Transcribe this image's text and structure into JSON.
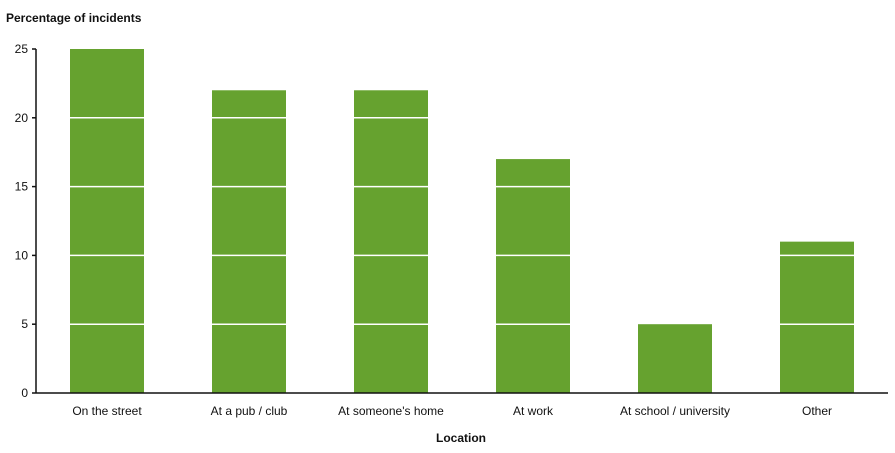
{
  "chart_data": {
    "type": "bar",
    "title": "",
    "ylabel": "Percentage of incidents",
    "xlabel": "Location",
    "categories": [
      "On the street",
      "At a pub / club",
      "At someone's home",
      "At work",
      "At school / university",
      "Other"
    ],
    "values": [
      25,
      22,
      22,
      17,
      5,
      11
    ],
    "ylim": [
      0,
      25
    ],
    "yticks": [
      0,
      5,
      10,
      15,
      20,
      25
    ],
    "grid": false,
    "colors": {
      "bar": "#66a22f",
      "segment_line": "#ffffff",
      "axis": "#111111"
    }
  }
}
